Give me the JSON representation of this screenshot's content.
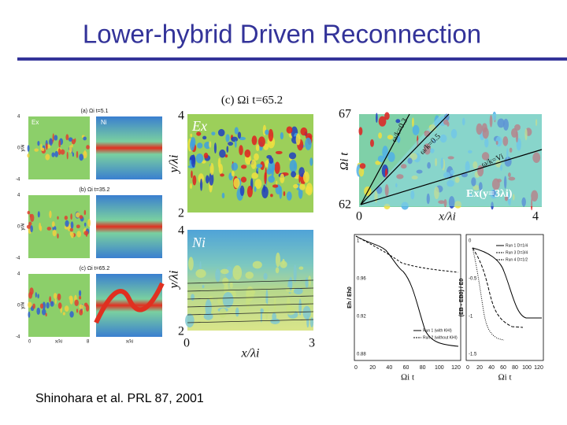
{
  "header": {
    "title": "Lower-hybrid Driven Reconnection"
  },
  "citation": "Shinohara et al. PRL 87, 2001",
  "figures": {
    "left": {
      "panels": [
        {
          "label": "(a) Ωi t=5.1",
          "left": "Ex",
          "right": "Ni"
        },
        {
          "label": "(b) Ωi t=35.2"
        },
        {
          "label": "(c) Ωi t=65.2"
        }
      ],
      "xlabel": "x/λi",
      "ylabel": "y/λi",
      "yticks": [
        "4",
        "0",
        "-4"
      ],
      "xticks": [
        "0",
        "8"
      ]
    },
    "middle": {
      "title": "(c) Ωi t=65.2",
      "top_label": "Ex",
      "bottom_label": "Ni",
      "ylabel": "y/λi",
      "xlabel": "x/λi",
      "top_yticks": [
        "4",
        "2"
      ],
      "bottom_yticks": [
        "4",
        "2"
      ],
      "xticks": [
        "0",
        "3"
      ]
    },
    "right_top": {
      "label": "Ex(y=3λi)",
      "ylabel": "Ωi t",
      "xlabel": "x/λi",
      "yticks": [
        "67",
        "62"
      ],
      "xticks": [
        "0",
        "4"
      ],
      "lines": [
        "ω/k=0.3",
        "ω/k=0.5",
        "ω/k=Vi"
      ]
    },
    "bottom_left": {
      "ylabel": "Eh / Eh0",
      "yticks": [
        "1",
        "0.96",
        "0.92",
        "0.88"
      ],
      "xticks": [
        "0",
        "20",
        "40",
        "60",
        "80",
        "100",
        "120"
      ],
      "xlabel": "Ωi t",
      "legend": [
        "Run 1 (with KHI)",
        "Run 2 (without KHI)"
      ]
    },
    "bottom_right": {
      "ylabel": "(EB - EB0) / E0",
      "yticks": [
        "0",
        "-0.5",
        "-1",
        "-1.5"
      ],
      "xticks": [
        "0",
        "20",
        "40",
        "60",
        "80",
        "100",
        "120"
      ],
      "xlabel": "Ωi t",
      "legend": [
        "Run 1 D=1/4",
        "Run 3 D=3/4",
        "Run 4 D=1/2"
      ]
    }
  }
}
